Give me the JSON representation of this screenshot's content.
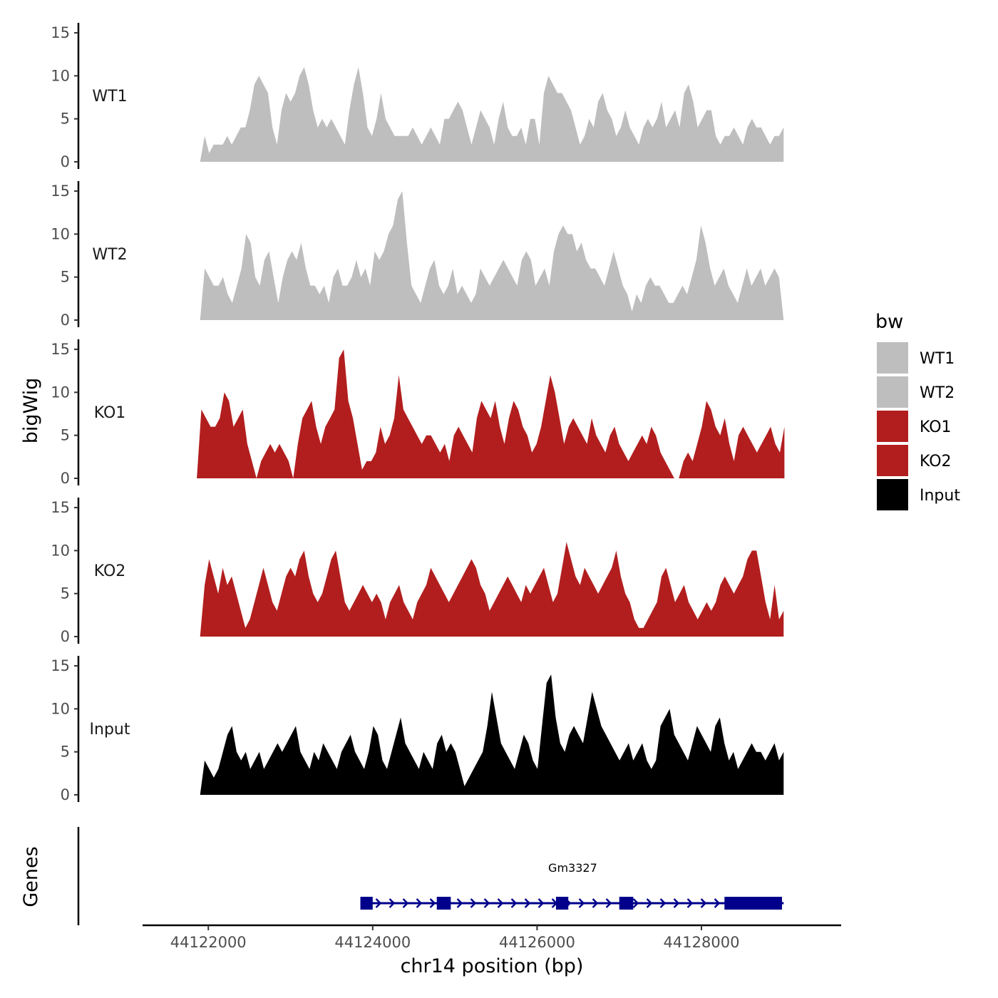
{
  "chart_data": {
    "type": "area",
    "chromosome": "chr14",
    "y_title": "bigWig",
    "x_title": "chr14 position (bp)",
    "x_range": [
      44121200,
      44129700
    ],
    "x_ticks": [
      44122000,
      44124000,
      44126000,
      44128000
    ],
    "x_tick_labels": [
      "44122000",
      "44124000",
      "44126000",
      "44128000"
    ],
    "y_range": [
      0,
      16
    ],
    "y_ticks": [
      0,
      5,
      10,
      15
    ],
    "y_tick_labels": [
      "0",
      "5",
      "10",
      "15"
    ],
    "legend": {
      "title": "bw",
      "entries": [
        {
          "label": "WT1",
          "color": "#bebebe"
        },
        {
          "label": "WT2",
          "color": "#bebebe"
        },
        {
          "label": "KO1",
          "color": "#b21e1e"
        },
        {
          "label": "KO2",
          "color": "#b21e1e"
        },
        {
          "label": "Input",
          "color": "#000000"
        }
      ]
    },
    "tracks": [
      {
        "name": "WT1",
        "color": "#bebebe",
        "x_start": 44121900,
        "x_end": 44129000,
        "values": [
          0,
          3,
          1,
          2,
          2,
          2,
          3,
          2,
          3,
          4,
          4,
          6,
          9,
          10,
          9,
          8,
          4,
          2,
          6,
          8,
          7,
          8,
          10,
          11,
          9,
          6,
          4,
          5,
          4,
          5,
          4,
          3,
          2,
          6,
          9,
          11,
          8,
          4,
          3,
          5,
          8,
          5,
          4,
          3,
          3,
          3,
          3,
          4,
          3,
          2,
          3,
          4,
          3,
          2,
          5,
          5,
          6,
          7,
          6,
          4,
          2,
          4,
          6,
          5,
          4,
          2,
          5,
          7,
          4,
          3,
          3,
          4,
          2,
          5,
          5,
          2,
          8,
          10,
          9,
          8,
          8,
          7,
          6,
          4,
          2,
          3,
          5,
          4,
          7,
          8,
          6,
          5,
          3,
          4,
          6,
          4,
          3,
          2,
          4,
          5,
          4,
          5,
          7,
          4,
          5,
          6,
          4,
          8,
          9,
          7,
          4,
          5,
          6,
          6,
          3,
          2,
          3,
          3,
          4,
          3,
          2,
          4,
          5,
          4,
          4,
          3,
          2,
          3,
          3,
          4
        ]
      },
      {
        "name": "WT2",
        "color": "#bebebe",
        "x_start": 44121900,
        "x_end": 44129000,
        "values": [
          0,
          6,
          5,
          4,
          4,
          5,
          3,
          2,
          4,
          6,
          10,
          9,
          5,
          4,
          7,
          8,
          5,
          2,
          5,
          7,
          8,
          7,
          9,
          6,
          4,
          4,
          3,
          4,
          2,
          5,
          6,
          4,
          4,
          5,
          7,
          5,
          6,
          4,
          8,
          7,
          8,
          10,
          11,
          14,
          15,
          9,
          4,
          3,
          2,
          4,
          6,
          7,
          4,
          3,
          4,
          6,
          3,
          4,
          3,
          2,
          3,
          6,
          5,
          4,
          5,
          6,
          7,
          6,
          5,
          4,
          7,
          8,
          7,
          4,
          5,
          6,
          4,
          8,
          10,
          11,
          10,
          10,
          8,
          9,
          7,
          6,
          6,
          5,
          4,
          6,
          8,
          6,
          4,
          3,
          1,
          3,
          2,
          4,
          5,
          4,
          4,
          3,
          2,
          2,
          3,
          4,
          3,
          5,
          7,
          11,
          9,
          6,
          4,
          5,
          6,
          4,
          3,
          2,
          4,
          6,
          4,
          5,
          6,
          4,
          5,
          6,
          5,
          0
        ]
      },
      {
        "name": "KO1",
        "color": "#b21e1e",
        "x_start": 44121860,
        "x_end": 44129010,
        "values": [
          0,
          8,
          7,
          6,
          6,
          7,
          10,
          9,
          6,
          7,
          8,
          4,
          2,
          0,
          2,
          3,
          4,
          3,
          4,
          3,
          2,
          0,
          4,
          7,
          8,
          9,
          6,
          4,
          6,
          7,
          8,
          14,
          15,
          9,
          7,
          4,
          1,
          2,
          2,
          3,
          6,
          4,
          5,
          7,
          12,
          8,
          7,
          6,
          5,
          4,
          5,
          5,
          4,
          3,
          4,
          2,
          5,
          6,
          5,
          4,
          3,
          7,
          9,
          8,
          7,
          9,
          6,
          4,
          7,
          9,
          8,
          6,
          5,
          3,
          4,
          6,
          9,
          12,
          10,
          7,
          4,
          6,
          7,
          6,
          5,
          4,
          7,
          5,
          4,
          3,
          5,
          6,
          4,
          3,
          2,
          3,
          4,
          5,
          4,
          6,
          5,
          3,
          2,
          1,
          0,
          0,
          2,
          3,
          2,
          4,
          6,
          9,
          8,
          6,
          5,
          7,
          4,
          2,
          5,
          6,
          5,
          4,
          3,
          4,
          5,
          6,
          4,
          3,
          6
        ]
      },
      {
        "name": "KO2",
        "color": "#b21e1e",
        "x_start": 44121900,
        "x_end": 44129000,
        "values": [
          0,
          6,
          9,
          7,
          5,
          8,
          6,
          7,
          5,
          3,
          1,
          2,
          4,
          6,
          8,
          6,
          4,
          3,
          5,
          7,
          8,
          7,
          9,
          10,
          7,
          5,
          4,
          5,
          7,
          9,
          10,
          7,
          4,
          3,
          4,
          5,
          6,
          5,
          4,
          5,
          4,
          2,
          4,
          5,
          6,
          4,
          3,
          2,
          4,
          5,
          6,
          8,
          7,
          6,
          5,
          4,
          5,
          6,
          7,
          8,
          9,
          8,
          6,
          5,
          3,
          4,
          5,
          6,
          7,
          6,
          5,
          4,
          6,
          5,
          6,
          7,
          8,
          6,
          4,
          5,
          8,
          11,
          9,
          7,
          6,
          8,
          7,
          6,
          5,
          6,
          7,
          8,
          10,
          7,
          5,
          4,
          2,
          1,
          1,
          2,
          3,
          4,
          7,
          8,
          6,
          4,
          5,
          6,
          4,
          3,
          2,
          3,
          4,
          3,
          4,
          6,
          7,
          6,
          5,
          6,
          7,
          9,
          10,
          10,
          7,
          4,
          2,
          6,
          2,
          3
        ]
      },
      {
        "name": "Input",
        "color": "#000000",
        "x_start": 44121900,
        "x_end": 44129000,
        "values": [
          0,
          4,
          3,
          2,
          3,
          5,
          7,
          8,
          5,
          4,
          5,
          3,
          4,
          5,
          3,
          4,
          5,
          6,
          5,
          6,
          7,
          8,
          5,
          4,
          3,
          5,
          4,
          6,
          5,
          4,
          3,
          5,
          6,
          7,
          5,
          4,
          3,
          5,
          8,
          7,
          4,
          3,
          5,
          7,
          9,
          6,
          5,
          4,
          3,
          5,
          4,
          3,
          6,
          7,
          5,
          6,
          5,
          3,
          1,
          2,
          3,
          4,
          5,
          8,
          12,
          9,
          6,
          5,
          4,
          3,
          5,
          7,
          6,
          4,
          3,
          8,
          13,
          14,
          9,
          6,
          5,
          7,
          8,
          7,
          6,
          9,
          12,
          10,
          8,
          7,
          6,
          5,
          4,
          5,
          6,
          4,
          5,
          6,
          4,
          3,
          4,
          8,
          9,
          10,
          7,
          6,
          5,
          4,
          6,
          8,
          7,
          6,
          5,
          8,
          9,
          6,
          4,
          5,
          3,
          4,
          5,
          6,
          5,
          5,
          4,
          5,
          6,
          4,
          5
        ]
      }
    ],
    "genes": [
      {
        "name": "Gm3327",
        "strand": "+",
        "start": 44123850,
        "end": 44129000,
        "exons": [
          [
            44123850,
            44124000
          ],
          [
            44124780,
            44124950
          ],
          [
            44126230,
            44126380
          ],
          [
            44127000,
            44127170
          ],
          [
            44128280,
            44128980
          ]
        ],
        "color": "#00008b"
      }
    ],
    "gene_track_title": "Genes"
  }
}
